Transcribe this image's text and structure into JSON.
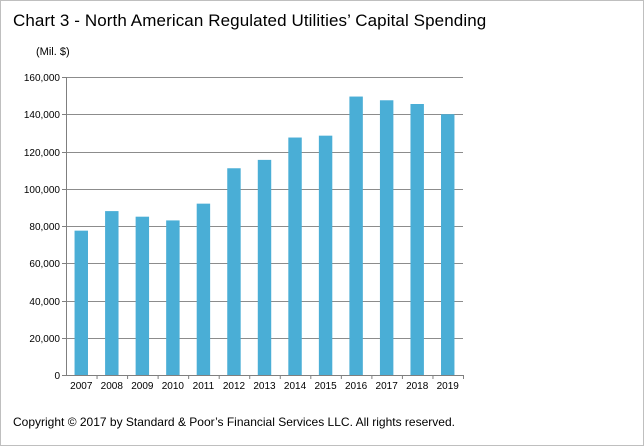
{
  "title": "Chart 3 - North American Regulated Utilities’ Capital Spending",
  "footer": "Copyright © 2017 by Standard & Poor’s Financial Services LLC. All rights reserved.",
  "colors": {
    "bar": "#4aaed6",
    "grid": "#8c8c8c",
    "axis": "#7f7f7f"
  },
  "chart_data": {
    "type": "bar",
    "title": "",
    "unit_label": "(Mil. $)",
    "xlabel": "",
    "ylabel": "",
    "ylim": [
      0,
      160000
    ],
    "ytick_values": [
      0,
      20000,
      40000,
      60000,
      80000,
      100000,
      120000,
      140000,
      160000
    ],
    "ytick_labels": [
      "0",
      "20,000",
      "40,000",
      "60,000",
      "80,000",
      "100,000",
      "120,000",
      "140,000",
      "160,000"
    ],
    "grid": true,
    "categories": [
      "2007",
      "2008",
      "2009",
      "2010",
      "2011",
      "2012",
      "2013",
      "2014",
      "2015",
      "2016",
      "2017",
      "2018",
      "2019"
    ],
    "values": [
      77500,
      88000,
      85000,
      83000,
      92000,
      111000,
      115500,
      127500,
      128500,
      149500,
      147500,
      145500,
      140000
    ]
  }
}
